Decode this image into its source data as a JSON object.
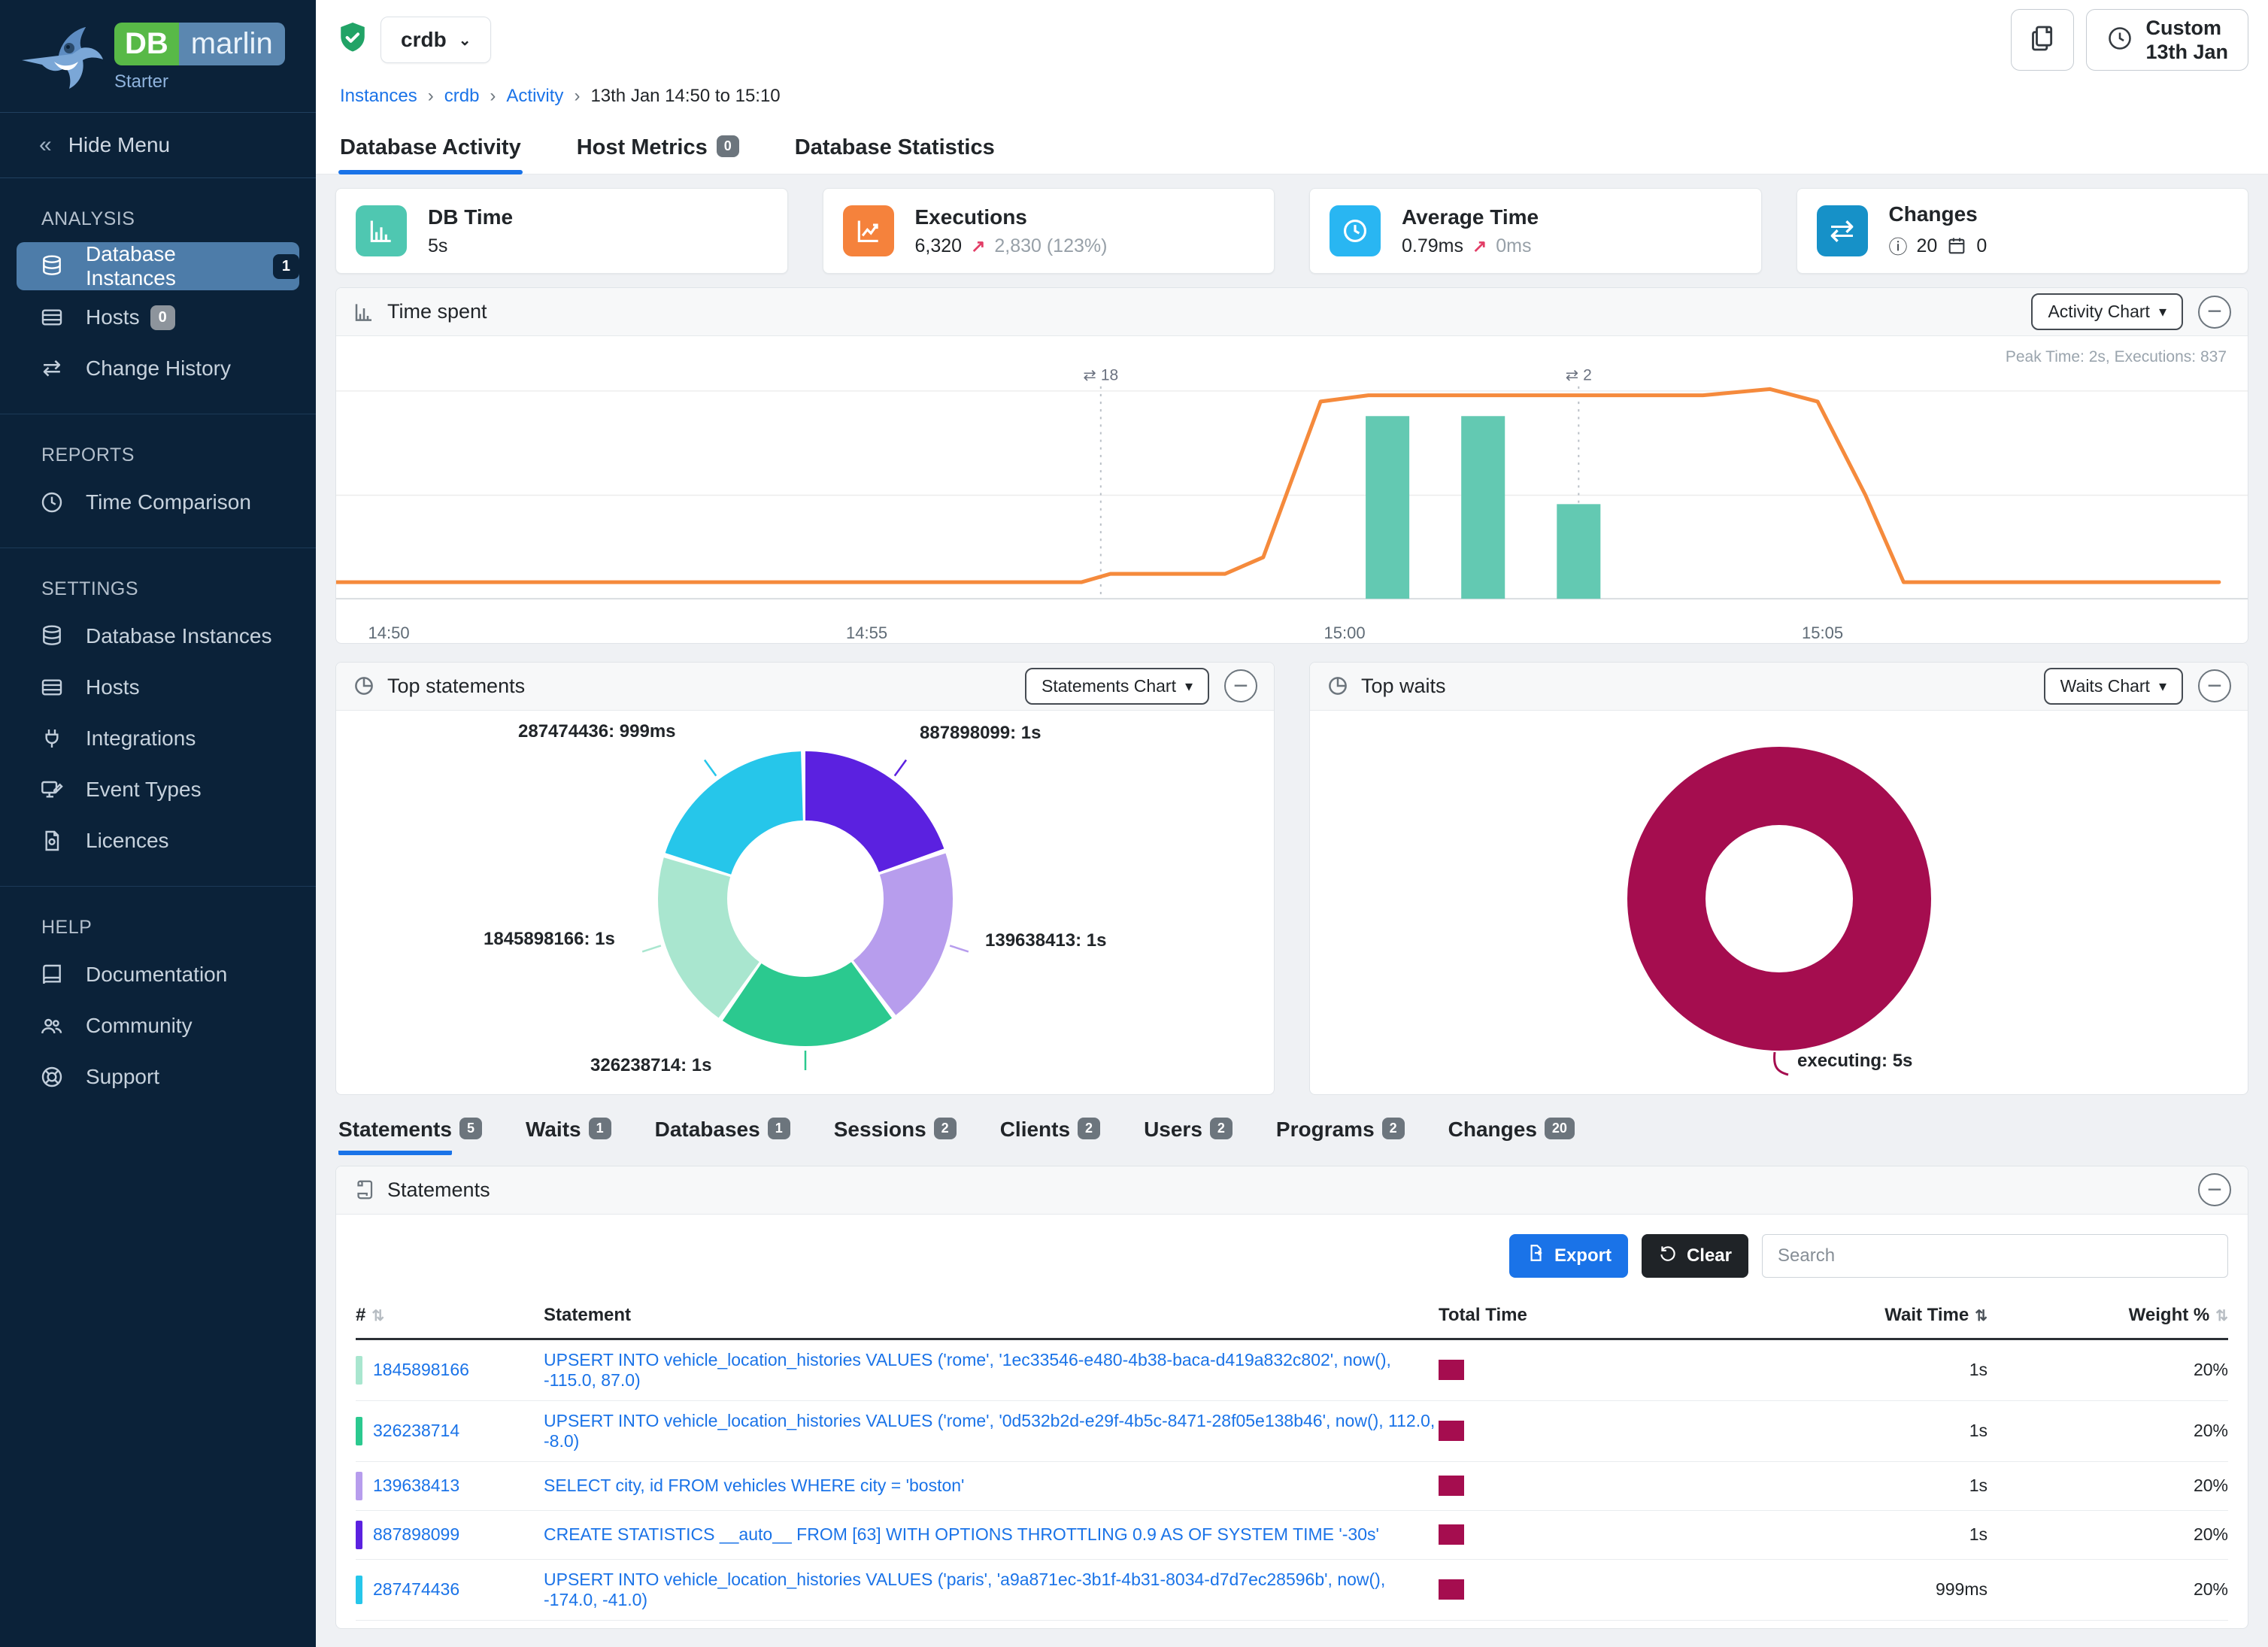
{
  "brand": {
    "db": "DB",
    "marlin": "marlin",
    "edition": "Starter"
  },
  "icons": {
    "change": "⇄",
    "info": "ⓘ",
    "trend_up": "↗",
    "sort": "⇅",
    "caret": "▾",
    "collapse": "−",
    "hide": "«",
    "separator": "›"
  },
  "topbar": {
    "instance_name": "crdb",
    "breadcrumb": [
      "Instances",
      "crdb",
      "Activity",
      "13th Jan 14:50 to 15:10"
    ],
    "custom_range_line1": "Custom",
    "custom_range_line2": "13th Jan"
  },
  "tabs": [
    {
      "label": "Database Activity",
      "active": true
    },
    {
      "label": "Host Metrics",
      "badge": "0"
    },
    {
      "label": "Database Statistics"
    }
  ],
  "kpis": [
    {
      "title": "DB Time",
      "value": "5s",
      "color": "#4fc7b1"
    },
    {
      "title": "Executions",
      "value": "6,320",
      "delta": "2,830 (123%)",
      "color": "#f5823c"
    },
    {
      "title": "Average Time",
      "value": "0.79ms",
      "delta": "0ms",
      "color": "#29b6f2"
    },
    {
      "title": "Changes",
      "info_count": "20",
      "event_count": "0",
      "color": "#1691c8"
    }
  ],
  "sidebar": {
    "hide_menu": "Hide Menu",
    "sections": [
      {
        "title": "ANALYSIS",
        "items": [
          {
            "label": "Database Instances",
            "badge": "1",
            "selected": true
          },
          {
            "label": "Hosts",
            "badge": "0"
          },
          {
            "label": "Change History"
          }
        ]
      },
      {
        "title": "REPORTS",
        "items": [
          {
            "label": "Time Comparison"
          }
        ]
      },
      {
        "title": "SETTINGS",
        "items": [
          {
            "label": "Database Instances"
          },
          {
            "label": "Hosts"
          },
          {
            "label": "Integrations"
          },
          {
            "label": "Event Types"
          },
          {
            "label": "Licences"
          }
        ]
      },
      {
        "title": "HELP",
        "items": [
          {
            "label": "Documentation"
          },
          {
            "label": "Community"
          },
          {
            "label": "Support"
          }
        ]
      }
    ]
  },
  "panels": {
    "time_spent": {
      "title": "Time spent",
      "chart_selector": "Activity Chart"
    },
    "top_statements": {
      "title": "Top statements",
      "chart_selector": "Statements Chart"
    },
    "top_waits": {
      "title": "Top waits",
      "chart_selector": "Waits Chart"
    }
  },
  "subtabs": [
    {
      "label": "Statements",
      "badge": "5",
      "active": true
    },
    {
      "label": "Waits",
      "badge": "1"
    },
    {
      "label": "Databases",
      "badge": "1"
    },
    {
      "label": "Sessions",
      "badge": "2"
    },
    {
      "label": "Clients",
      "badge": "2"
    },
    {
      "label": "Users",
      "badge": "2"
    },
    {
      "label": "Programs",
      "badge": "2"
    },
    {
      "label": "Changes",
      "badge": "20"
    }
  ],
  "statements_panel": {
    "title": "Statements",
    "export_label": "Export",
    "clear_label": "Clear",
    "search_placeholder": "Search",
    "columns": [
      "#",
      "Statement",
      "Total Time",
      "Wait Time",
      "Weight %"
    ],
    "total_time_bar_color": "#a50d4f",
    "rows": [
      {
        "id": "1845898166",
        "color": "#a9e6cf",
        "statement": "UPSERT INTO vehicle_location_histories VALUES ('rome', '1ec33546-e480-4b38-baca-d419a832c802', now(), -115.0, 87.0)",
        "wait_time": "1s",
        "weight": "20%"
      },
      {
        "id": "326238714",
        "color": "#2bc98f",
        "statement": "UPSERT INTO vehicle_location_histories VALUES ('rome', '0d532b2d-e29f-4b5c-8471-28f05e138b46', now(), 112.0, -8.0)",
        "wait_time": "1s",
        "weight": "20%"
      },
      {
        "id": "139638413",
        "color": "#b79ded",
        "statement": "SELECT city, id FROM vehicles WHERE city = 'boston'",
        "wait_time": "1s",
        "weight": "20%"
      },
      {
        "id": "887898099",
        "color": "#5b21e0",
        "statement": "CREATE STATISTICS __auto__ FROM [63] WITH OPTIONS THROTTLING 0.9 AS OF SYSTEM TIME '-30s'",
        "wait_time": "1s",
        "weight": "20%"
      },
      {
        "id": "287474436",
        "color": "#26c6ea",
        "statement": "UPSERT INTO vehicle_location_histories VALUES ('paris', 'a9a871ec-3b1f-4b31-8034-d7d7ec28596b', now(), -174.0, -41.0)",
        "wait_time": "999ms",
        "weight": "20%"
      }
    ]
  },
  "chart_data": [
    {
      "id": "time-spent",
      "type": "line",
      "title": "Time spent",
      "note": "Peak Time: 2s, Executions: 837",
      "ylim": [
        0,
        2.2
      ],
      "x_range_minutes": [
        0,
        20
      ],
      "x_ticks": [
        {
          "min": 0,
          "label": "14:50"
        },
        {
          "min": 5,
          "label": "14:55"
        },
        {
          "min": 10,
          "label": "15:00"
        },
        {
          "min": 15,
          "label": "15:05"
        }
      ],
      "series": [
        {
          "name": "DB Time (s)",
          "type": "line",
          "color": "#f58a3c",
          "points": [
            [
              0,
              0.16
            ],
            [
              7.8,
              0.16
            ],
            [
              8.1,
              0.24
            ],
            [
              9.3,
              0.24
            ],
            [
              9.7,
              0.4
            ],
            [
              10.3,
              1.9
            ],
            [
              10.8,
              1.96
            ],
            [
              14.3,
              1.96
            ],
            [
              15.0,
              2.02
            ],
            [
              15.5,
              1.9
            ],
            [
              16.0,
              1.0
            ],
            [
              16.4,
              0.16
            ],
            [
              19.7,
              0.16
            ]
          ]
        },
        {
          "name": "Executions",
          "type": "bar",
          "color": "#63c9b2",
          "ymax": 920,
          "points": [
            [
              11,
              830
            ],
            [
              12,
              830
            ],
            [
              13,
              430
            ]
          ]
        }
      ],
      "annotations": [
        {
          "min": 8.0,
          "label": "⇄ 18"
        },
        {
          "min": 13.0,
          "label": "⇄ 2"
        }
      ]
    },
    {
      "id": "top-statements",
      "type": "pie",
      "donut": true,
      "slices": [
        {
          "name": "887898099",
          "value_label": "1s",
          "pct": 20,
          "color": "#5b21e0"
        },
        {
          "name": "139638413",
          "value_label": "1s",
          "pct": 20,
          "color": "#b79ded"
        },
        {
          "name": "326238714",
          "value_label": "1s",
          "pct": 20,
          "color": "#2bc98f"
        },
        {
          "name": "1845898166",
          "value_label": "1s",
          "pct": 20,
          "color": "#a9e6cf"
        },
        {
          "name": "287474436",
          "value_label": "999ms",
          "pct": 20,
          "color": "#26c6ea"
        }
      ]
    },
    {
      "id": "top-waits",
      "type": "pie",
      "donut": true,
      "slices": [
        {
          "name": "executing",
          "value_label": "5s",
          "pct": 100,
          "color": "#a50d4f"
        }
      ]
    }
  ]
}
